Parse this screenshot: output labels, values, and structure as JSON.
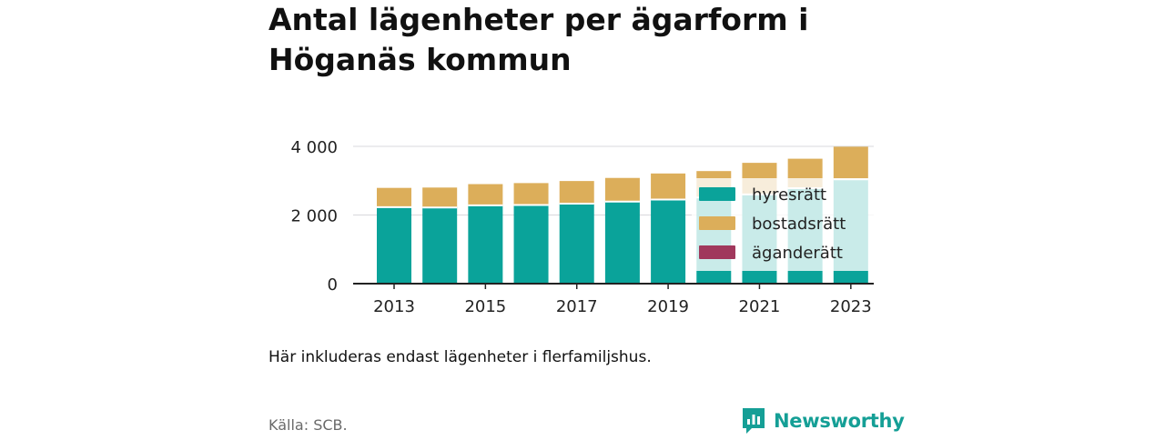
{
  "title": "Antal lägenheter per ägarform i Höganäs kommun",
  "note": "Här inkluderas endast lägenheter i flerfamiljshus.",
  "source": "Källa: SCB.",
  "brand": {
    "name": "Newsworthy",
    "icon": "newsworthy-logo-icon",
    "color": "#159f96"
  },
  "chart_data": {
    "type": "bar",
    "stacked": true,
    "categories": [
      "2013",
      "2014",
      "2015",
      "2016",
      "2017",
      "2018",
      "2019",
      "2020",
      "2021",
      "2022",
      "2023"
    ],
    "x_tick_labels": [
      "2013",
      "2015",
      "2017",
      "2019",
      "2021",
      "2023"
    ],
    "series": [
      {
        "name": "hyresrätt",
        "color": "#0aa39a",
        "values": [
          2230,
          2220,
          2280,
          2290,
          2330,
          2390,
          2450,
          2510,
          2600,
          2780,
          3040
        ]
      },
      {
        "name": "bostadsrätt",
        "color": "#dcae5a",
        "values": [
          560,
          580,
          620,
          640,
          660,
          690,
          760,
          770,
          920,
          860,
          950
        ]
      },
      {
        "name": "äganderätt",
        "color": "#a0385c",
        "values": [
          0,
          0,
          0,
          0,
          0,
          0,
          0,
          0,
          0,
          0,
          0
        ]
      }
    ],
    "y_ticks": [
      0,
      2000,
      4000
    ],
    "y_tick_labels": [
      "0",
      "2 000",
      "4 000"
    ],
    "ylim": [
      0,
      4000
    ],
    "grid": true,
    "legend": "top-right"
  }
}
